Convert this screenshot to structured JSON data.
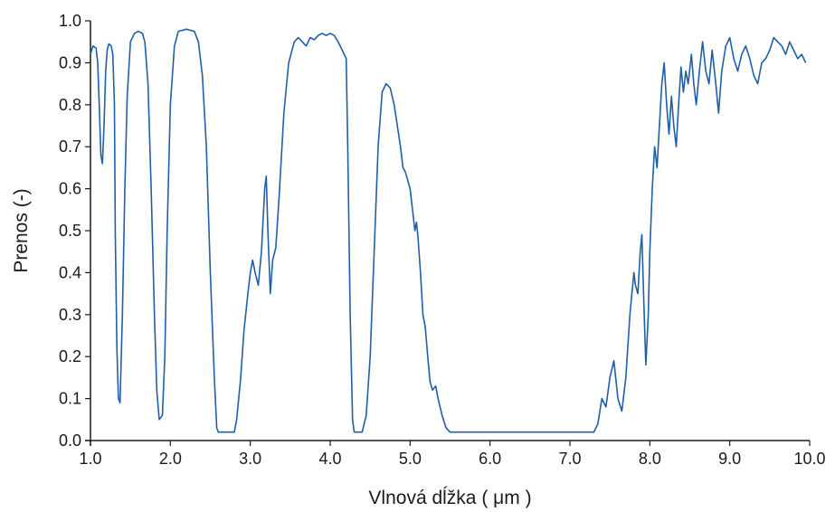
{
  "chart_data": {
    "type": "line",
    "title": "",
    "xlabel": "Vlnová dĺžka ( μm )",
    "ylabel": "Prenos (-)",
    "xlim": [
      1.0,
      10.0
    ],
    "ylim": [
      0.0,
      1.0
    ],
    "x_ticks": [
      "1.0",
      "2.0",
      "3.0",
      "4.0",
      "5.0",
      "6.0",
      "7.0",
      "8.0",
      "9.0",
      "10.0"
    ],
    "y_ticks": [
      "0.0",
      "0.1",
      "0.2",
      "0.3",
      "0.4",
      "0.5",
      "0.6",
      "0.7",
      "0.8",
      "0.9",
      "1.0"
    ],
    "grid": false,
    "line_color": "#1f5fa8",
    "series": [
      {
        "points": [
          [
            1.0,
            0.92
          ],
          [
            1.03,
            0.94
          ],
          [
            1.07,
            0.935
          ],
          [
            1.09,
            0.9
          ],
          [
            1.11,
            0.8
          ],
          [
            1.13,
            0.68
          ],
          [
            1.15,
            0.66
          ],
          [
            1.17,
            0.75
          ],
          [
            1.19,
            0.88
          ],
          [
            1.21,
            0.93
          ],
          [
            1.23,
            0.945
          ],
          [
            1.26,
            0.94
          ],
          [
            1.28,
            0.92
          ],
          [
            1.3,
            0.8
          ],
          [
            1.31,
            0.5
          ],
          [
            1.33,
            0.22
          ],
          [
            1.35,
            0.1
          ],
          [
            1.37,
            0.09
          ],
          [
            1.4,
            0.3
          ],
          [
            1.43,
            0.6
          ],
          [
            1.46,
            0.82
          ],
          [
            1.5,
            0.95
          ],
          [
            1.55,
            0.97
          ],
          [
            1.6,
            0.975
          ],
          [
            1.65,
            0.97
          ],
          [
            1.68,
            0.95
          ],
          [
            1.72,
            0.85
          ],
          [
            1.76,
            0.6
          ],
          [
            1.8,
            0.3
          ],
          [
            1.83,
            0.12
          ],
          [
            1.86,
            0.05
          ],
          [
            1.9,
            0.06
          ],
          [
            1.93,
            0.2
          ],
          [
            1.96,
            0.5
          ],
          [
            2.0,
            0.8
          ],
          [
            2.05,
            0.94
          ],
          [
            2.1,
            0.975
          ],
          [
            2.2,
            0.98
          ],
          [
            2.3,
            0.975
          ],
          [
            2.35,
            0.95
          ],
          [
            2.4,
            0.87
          ],
          [
            2.45,
            0.7
          ],
          [
            2.5,
            0.4
          ],
          [
            2.55,
            0.15
          ],
          [
            2.58,
            0.03
          ],
          [
            2.6,
            0.02
          ],
          [
            2.8,
            0.02
          ],
          [
            2.83,
            0.05
          ],
          [
            2.88,
            0.15
          ],
          [
            2.92,
            0.26
          ],
          [
            2.97,
            0.35
          ],
          [
            3.0,
            0.4
          ],
          [
            3.03,
            0.43
          ],
          [
            3.06,
            0.4
          ],
          [
            3.1,
            0.37
          ],
          [
            3.14,
            0.45
          ],
          [
            3.18,
            0.6
          ],
          [
            3.2,
            0.63
          ],
          [
            3.22,
            0.5
          ],
          [
            3.25,
            0.35
          ],
          [
            3.28,
            0.43
          ],
          [
            3.32,
            0.46
          ],
          [
            3.36,
            0.58
          ],
          [
            3.42,
            0.78
          ],
          [
            3.48,
            0.9
          ],
          [
            3.55,
            0.95
          ],
          [
            3.6,
            0.96
          ],
          [
            3.65,
            0.95
          ],
          [
            3.7,
            0.94
          ],
          [
            3.75,
            0.96
          ],
          [
            3.8,
            0.955
          ],
          [
            3.85,
            0.965
          ],
          [
            3.9,
            0.97
          ],
          [
            3.95,
            0.965
          ],
          [
            4.0,
            0.97
          ],
          [
            4.05,
            0.965
          ],
          [
            4.1,
            0.95
          ],
          [
            4.15,
            0.93
          ],
          [
            4.2,
            0.91
          ],
          [
            4.22,
            0.7
          ],
          [
            4.25,
            0.3
          ],
          [
            4.28,
            0.05
          ],
          [
            4.3,
            0.02
          ],
          [
            4.4,
            0.02
          ],
          [
            4.45,
            0.06
          ],
          [
            4.5,
            0.2
          ],
          [
            4.55,
            0.45
          ],
          [
            4.6,
            0.7
          ],
          [
            4.65,
            0.83
          ],
          [
            4.7,
            0.85
          ],
          [
            4.75,
            0.84
          ],
          [
            4.8,
            0.8
          ],
          [
            4.84,
            0.75
          ],
          [
            4.88,
            0.7
          ],
          [
            4.91,
            0.65
          ],
          [
            4.94,
            0.64
          ],
          [
            4.97,
            0.62
          ],
          [
            5.0,
            0.6
          ],
          [
            5.03,
            0.55
          ],
          [
            5.06,
            0.5
          ],
          [
            5.08,
            0.52
          ],
          [
            5.1,
            0.48
          ],
          [
            5.13,
            0.4
          ],
          [
            5.16,
            0.3
          ],
          [
            5.19,
            0.27
          ],
          [
            5.22,
            0.2
          ],
          [
            5.25,
            0.14
          ],
          [
            5.28,
            0.12
          ],
          [
            5.32,
            0.13
          ],
          [
            5.35,
            0.1
          ],
          [
            5.4,
            0.06
          ],
          [
            5.45,
            0.03
          ],
          [
            5.5,
            0.02
          ],
          [
            6.0,
            0.02
          ],
          [
            6.5,
            0.02
          ],
          [
            7.0,
            0.02
          ],
          [
            7.3,
            0.02
          ],
          [
            7.35,
            0.04
          ],
          [
            7.4,
            0.1
          ],
          [
            7.45,
            0.08
          ],
          [
            7.5,
            0.15
          ],
          [
            7.55,
            0.19
          ],
          [
            7.6,
            0.1
          ],
          [
            7.65,
            0.07
          ],
          [
            7.7,
            0.15
          ],
          [
            7.75,
            0.3
          ],
          [
            7.8,
            0.4
          ],
          [
            7.82,
            0.37
          ],
          [
            7.85,
            0.35
          ],
          [
            7.88,
            0.45
          ],
          [
            7.9,
            0.49
          ],
          [
            7.93,
            0.3
          ],
          [
            7.95,
            0.18
          ],
          [
            7.98,
            0.3
          ],
          [
            8.0,
            0.45
          ],
          [
            8.03,
            0.6
          ],
          [
            8.06,
            0.7
          ],
          [
            8.09,
            0.65
          ],
          [
            8.12,
            0.75
          ],
          [
            8.15,
            0.85
          ],
          [
            8.18,
            0.9
          ],
          [
            8.21,
            0.8
          ],
          [
            8.24,
            0.73
          ],
          [
            8.27,
            0.82
          ],
          [
            8.3,
            0.75
          ],
          [
            8.33,
            0.7
          ],
          [
            8.36,
            0.8
          ],
          [
            8.39,
            0.89
          ],
          [
            8.42,
            0.83
          ],
          [
            8.45,
            0.88
          ],
          [
            8.48,
            0.85
          ],
          [
            8.52,
            0.92
          ],
          [
            8.55,
            0.85
          ],
          [
            8.58,
            0.8
          ],
          [
            8.62,
            0.88
          ],
          [
            8.66,
            0.95
          ],
          [
            8.7,
            0.88
          ],
          [
            8.74,
            0.85
          ],
          [
            8.78,
            0.93
          ],
          [
            8.82,
            0.86
          ],
          [
            8.86,
            0.78
          ],
          [
            8.9,
            0.88
          ],
          [
            8.95,
            0.94
          ],
          [
            9.0,
            0.96
          ],
          [
            9.05,
            0.91
          ],
          [
            9.1,
            0.88
          ],
          [
            9.15,
            0.92
          ],
          [
            9.2,
            0.94
          ],
          [
            9.25,
            0.91
          ],
          [
            9.3,
            0.87
          ],
          [
            9.35,
            0.85
          ],
          [
            9.4,
            0.9
          ],
          [
            9.45,
            0.91
          ],
          [
            9.5,
            0.93
          ],
          [
            9.55,
            0.96
          ],
          [
            9.6,
            0.95
          ],
          [
            9.65,
            0.94
          ],
          [
            9.7,
            0.92
          ],
          [
            9.75,
            0.95
          ],
          [
            9.8,
            0.93
          ],
          [
            9.85,
            0.91
          ],
          [
            9.9,
            0.92
          ],
          [
            9.95,
            0.9
          ]
        ]
      }
    ]
  }
}
